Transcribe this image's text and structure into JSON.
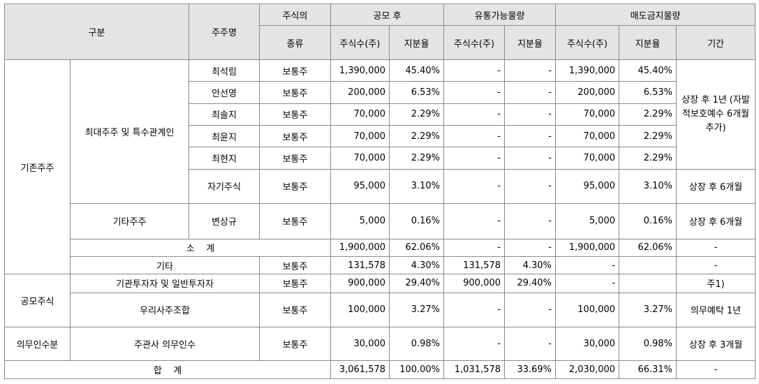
{
  "header": {
    "category": "구분",
    "holder": "주주명",
    "stock_type_top": "주식의",
    "stock_type_bottom": "종류",
    "after_ipo": "공모 후",
    "tradable": "유통가능물량",
    "lockup": "매도금지물량",
    "shares": "주식수(주)",
    "ratio": "지분율",
    "period": "기간"
  },
  "groups": {
    "existing": "기존주주",
    "major": "최대주주 및 특수관계인",
    "other_holders": "기타주주",
    "subtotal": "소    계",
    "etc": "기타",
    "public": "공모주식",
    "investors": "기관투자자 및 일반투자자",
    "esop": "우리사주조합",
    "mandatory": "의무인수분",
    "underwriter": "주관사 의무인수",
    "total": "합    계"
  },
  "periods": {
    "major": "상장 후 1년 (자발적보호예수 6개월 추가)",
    "six_months": "상장 후 6개월",
    "note": "주1)",
    "esop": "의무예탁 1년",
    "three_months": "상장 후 3개월"
  },
  "rows": [
    {
      "name": "최석림",
      "type": "보통주",
      "s1": "1,390,000",
      "r1": "45.40%",
      "s2": "-",
      "r2": "-",
      "s3": "1,390,000",
      "r3": "45.40%"
    },
    {
      "name": "안선영",
      "type": "보통주",
      "s1": "200,000",
      "r1": "6.53%",
      "s2": "-",
      "r2": "-",
      "s3": "200,000",
      "r3": "6.53%"
    },
    {
      "name": "최솔지",
      "type": "보통주",
      "s1": "70,000",
      "r1": "2.29%",
      "s2": "-",
      "r2": "-",
      "s3": "70,000",
      "r3": "2.29%"
    },
    {
      "name": "최윤지",
      "type": "보통주",
      "s1": "70,000",
      "r1": "2.29%",
      "s2": "-",
      "r2": "-",
      "s3": "70,000",
      "r3": "2.29%"
    },
    {
      "name": "최현지",
      "type": "보통주",
      "s1": "70,000",
      "r1": "2.29%",
      "s2": "-",
      "r2": "-",
      "s3": "70,000",
      "r3": "2.29%"
    },
    {
      "name": "자기주식",
      "type": "보통주",
      "s1": "95,000",
      "r1": "3.10%",
      "s2": "-",
      "r2": "-",
      "s3": "95,000",
      "r3": "3.10%"
    },
    {
      "name": "변상규",
      "type": "보통주",
      "s1": "5,000",
      "r1": "0.16%",
      "s2": "-",
      "r2": "-",
      "s3": "5,000",
      "r3": "0.16%"
    },
    {
      "s1": "1,900,000",
      "r1": "62.06%",
      "s2": "-",
      "r2": "-",
      "s3": "1,900,000",
      "r3": "62.06%",
      "period": "-"
    },
    {
      "type": "보통주",
      "s1": "131,578",
      "r1": "4.30%",
      "s2": "131,578",
      "r2": "4.30%",
      "s3": "-",
      "r3": "",
      "period": "-"
    },
    {
      "type": "보통주",
      "s1": "900,000",
      "r1": "29.40%",
      "s2": "900,000",
      "r2": "29.40%",
      "s3": "-",
      "r3": ""
    },
    {
      "type": "보통주",
      "s1": "100,000",
      "r1": "3.27%",
      "s2": "-",
      "r2": "-",
      "s3": "100,000",
      "r3": "3.27%"
    },
    {
      "type": "보통주",
      "s1": "30,000",
      "r1": "0.98%",
      "s2": "-",
      "r2": "-",
      "s3": "30,000",
      "r3": "0.98%"
    },
    {
      "s1": "3,061,578",
      "r1": "100.00%",
      "s2": "1,031,578",
      "r2": "33.69%",
      "s3": "2,030,000",
      "r3": "66.31%",
      "period": "-"
    }
  ]
}
